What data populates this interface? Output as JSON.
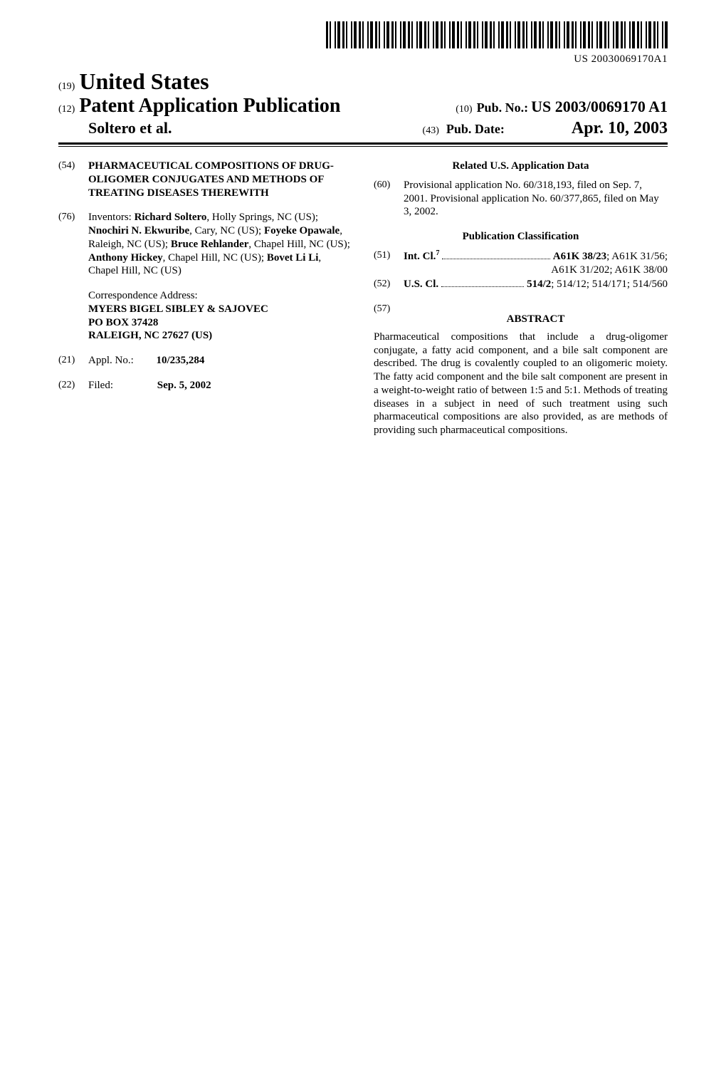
{
  "barcode_number": "US 20030069170A1",
  "header": {
    "country_code": "(19)",
    "country": "United States",
    "doc_code": "(12)",
    "doc_type": "Patent Application Publication",
    "author_line": "Soltero et al.",
    "pub_no_code": "(10)",
    "pub_no_label": "Pub. No.:",
    "pub_no_value": "US 2003/0069170 A1",
    "pub_date_code": "(43)",
    "pub_date_label": "Pub. Date:",
    "pub_date_value": "Apr. 10, 2003"
  },
  "left": {
    "title_code": "(54)",
    "title": "PHARMACEUTICAL COMPOSITIONS OF DRUG-OLIGOMER CONJUGATES AND METHODS OF TREATING DISEASES THEREWITH",
    "inventors_code": "(76)",
    "inventors_label": "Inventors:",
    "inventors": [
      {
        "name": "Richard Soltero",
        "loc": ", Holly Springs, NC (US); "
      },
      {
        "name": "Nnochiri N. Ekwuribe",
        "loc": ", Cary, NC (US); "
      },
      {
        "name": "Foyeke Opawale",
        "loc": ", Raleigh, NC (US); "
      },
      {
        "name": "Bruce Rehlander",
        "loc": ", Chapel Hill, NC (US); "
      },
      {
        "name": "Anthony Hickey",
        "loc": ", Chapel Hill, NC (US); "
      },
      {
        "name": "Bovet Li Li",
        "loc": ", Chapel Hill, NC (US)"
      }
    ],
    "correspondence_label": "Correspondence Address:",
    "correspondence_lines": [
      "MYERS BIGEL SIBLEY & SAJOVEC",
      "PO BOX 37428",
      "RALEIGH, NC 27627 (US)"
    ],
    "appl_code": "(21)",
    "appl_label": "Appl. No.:",
    "appl_value": "10/235,284",
    "filed_code": "(22)",
    "filed_label": "Filed:",
    "filed_value": "Sep. 5, 2002"
  },
  "right": {
    "related_heading": "Related U.S. Application Data",
    "prov_code": "(60)",
    "prov_text": "Provisional application No. 60/318,193, filed on Sep. 7, 2001. Provisional application No. 60/377,865, filed on May 3, 2002.",
    "class_heading": "Publication Classification",
    "intcl_code": "(51)",
    "intcl_label": "Int. Cl.",
    "intcl_sup": "7",
    "intcl_primary": "A61K 38/23",
    "intcl_rest": "; A61K 31/56; A61K 31/202; A61K 38/00",
    "intcl_line2": "A61K 31/202; A61K 38/00",
    "uscl_code": "(52)",
    "uscl_label": "U.S. Cl.",
    "uscl_primary": "514/2",
    "uscl_rest": "; 514/12; 514/171; 514/560",
    "abstract_code": "(57)",
    "abstract_heading": "ABSTRACT",
    "abstract_text": "Pharmaceutical compositions that include a drug-oligomer conjugate, a fatty acid component, and a bile salt component are described. The drug is covalently coupled to an oligomeric moiety. The fatty acid component and the bile salt component are present in a weight-to-weight ratio of between 1:5 and 5:1. Methods of treating diseases in a subject in need of such treatment using such pharmaceutical compositions are also provided, as are methods of providing such pharmaceutical compositions."
  }
}
